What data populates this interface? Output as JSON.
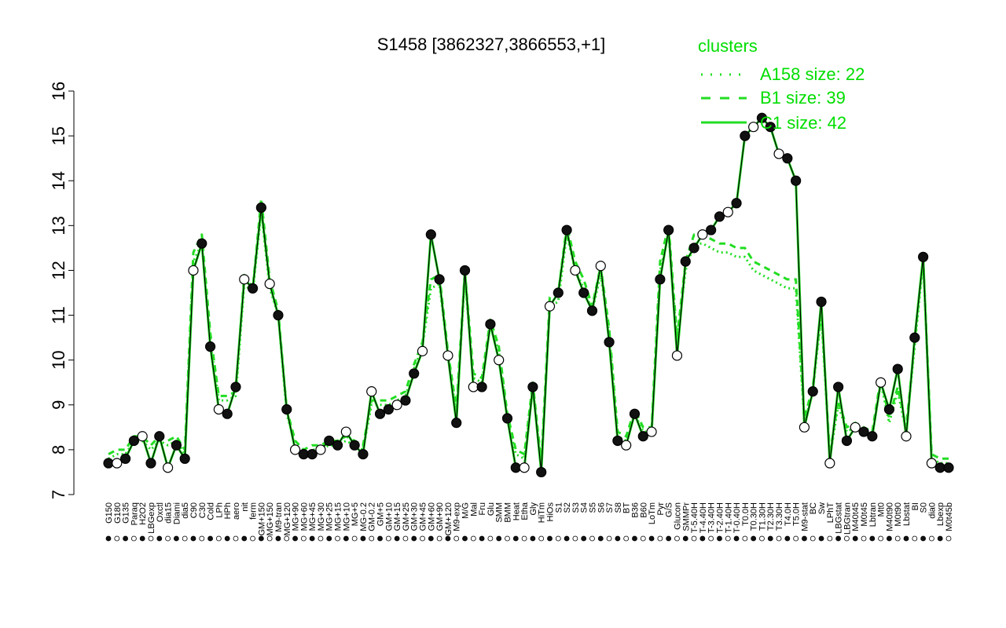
{
  "chart_data": {
    "type": "line",
    "title": "S1458 [3862327,3866553,+1]",
    "xlabel": "",
    "ylabel": "",
    "ylim": [
      7,
      16
    ],
    "yticks": [
      7,
      8,
      9,
      10,
      11,
      12,
      13,
      14,
      15,
      16
    ],
    "x_tick_labels": [
      "G150",
      "G180",
      "G135",
      "Paraq",
      "H2O2",
      "LBGexp",
      "Oxctl",
      "dia15",
      "Diami",
      "dia5",
      "C90",
      "C30",
      "Cold",
      "LPh",
      "HPh",
      "aero",
      "nit",
      "ferm",
      "GM+150",
      "MG+150",
      "M9-tran",
      "MG+120",
      "MG+90",
      "MG+60",
      "MG+45",
      "MG+30",
      "MG+25",
      "MG+15",
      "MG+10",
      "MG+5",
      "MG-0.2",
      "GM-0.2",
      "GM+5",
      "GM+10",
      "GM+15",
      "GM+25",
      "GM+30",
      "GM+45",
      "GM+60",
      "GM+90",
      "GM+120",
      "M9-exp",
      "M/G",
      "Mal",
      "Fru",
      "Glu",
      "SMM",
      "BMM",
      "Heat",
      "Etha",
      "Gly",
      "HiTm",
      "HiOs",
      "S1",
      "S2",
      "S3",
      "S4",
      "S5",
      "S6",
      "S7",
      "S8",
      "BT",
      "B36",
      "B60",
      "LoTm",
      "Pyr",
      "G/S",
      "Glucon",
      "SMMPr",
      "T-5.40H",
      "T-4.40H",
      "T-3.40H",
      "T-2.40H",
      "T-1.40H",
      "T-0.40H",
      "T0.0H",
      "T0.30H",
      "T1.30H",
      "T2.30H",
      "T3.30H",
      "T4.0H",
      "T5.0H",
      "M9-stat",
      "BC",
      "Sw",
      "LPhT",
      "LBGstat",
      "LBGtran",
      "M40t45",
      "M0t45",
      "Lbtran",
      "Mt0",
      "M40t90",
      "M0t90",
      "Lbstat",
      "BI",
      "S0",
      "dia0",
      "Lbexp",
      "M0t45b"
    ],
    "series": [
      {
        "name": "A158 size: 22",
        "style": "dotted",
        "values": [
          7.8,
          7.9,
          7.9,
          8.2,
          8.2,
          8.0,
          8.2,
          8.1,
          8.2,
          7.9,
          12.2,
          12.6,
          10.4,
          9.1,
          9.1,
          9.2,
          11.7,
          11.5,
          13.3,
          11.6,
          11.0,
          8.8,
          8.1,
          7.9,
          8.0,
          8.0,
          8.1,
          8.1,
          8.2,
          8.1,
          8.0,
          9.0,
          9.0,
          9.0,
          9.1,
          9.2,
          9.8,
          10.3,
          11.6,
          11.7,
          10.1,
          8.8,
          11.8,
          9.6,
          9.5,
          10.8,
          10.2,
          8.7,
          7.9,
          7.8,
          9.4,
          7.6,
          11.2,
          11.3,
          12.8,
          12.0,
          11.6,
          11.1,
          11.9,
          10.6,
          8.3,
          8.2,
          8.8,
          8.4,
          8.4,
          12.0,
          12.8,
          10.4,
          12.0,
          12.6,
          12.6,
          12.5,
          12.4,
          12.4,
          12.3,
          12.3,
          12.0,
          11.9,
          11.8,
          11.7,
          11.6,
          11.6,
          8.6,
          9.3,
          11.0,
          7.8,
          9.0,
          8.4,
          8.5,
          8.4,
          8.3,
          9.5,
          8.6,
          9.3,
          8.4,
          10.3,
          12.2,
          7.8,
          7.7,
          7.7
        ]
      },
      {
        "name": "B1 size: 39",
        "style": "dashed",
        "values": [
          7.9,
          8.0,
          8.0,
          8.3,
          8.3,
          8.1,
          8.3,
          8.2,
          8.3,
          8.0,
          12.4,
          12.8,
          10.6,
          9.2,
          9.2,
          9.3,
          11.9,
          11.6,
          13.6,
          11.8,
          11.1,
          8.9,
          8.2,
          8.0,
          8.1,
          8.1,
          8.2,
          8.2,
          8.3,
          8.2,
          8.1,
          9.1,
          9.1,
          9.1,
          9.2,
          9.3,
          9.9,
          10.4,
          11.8,
          11.9,
          10.2,
          8.9,
          12.0,
          9.7,
          9.6,
          10.9,
          10.3,
          8.8,
          8.0,
          7.9,
          9.5,
          7.7,
          11.4,
          11.5,
          13.0,
          12.2,
          11.8,
          11.2,
          12.1,
          10.7,
          8.4,
          8.3,
          8.9,
          8.5,
          8.5,
          12.2,
          13.0,
          10.5,
          12.2,
          12.8,
          12.8,
          12.7,
          12.6,
          12.6,
          12.5,
          12.5,
          12.2,
          12.1,
          12.0,
          11.9,
          11.8,
          11.8,
          8.7,
          9.4,
          11.1,
          7.9,
          9.1,
          8.5,
          8.6,
          8.5,
          8.4,
          9.6,
          8.7,
          9.4,
          8.5,
          10.4,
          12.3,
          7.9,
          7.8,
          7.8
        ]
      },
      {
        "name": "C1 size: 42",
        "style": "solid",
        "values": [
          7.7,
          7.7,
          7.8,
          8.2,
          8.3,
          7.7,
          8.3,
          7.6,
          8.1,
          7.8,
          12.0,
          12.6,
          10.3,
          8.9,
          8.8,
          9.4,
          11.8,
          11.6,
          13.4,
          11.7,
          11.0,
          8.9,
          8.0,
          7.9,
          7.9,
          8.0,
          8.2,
          8.1,
          8.4,
          8.1,
          7.9,
          9.3,
          8.8,
          8.9,
          9.0,
          9.1,
          9.7,
          10.2,
          12.8,
          11.8,
          10.1,
          8.6,
          12.0,
          9.4,
          9.4,
          10.8,
          10.0,
          8.7,
          7.6,
          7.6,
          9.4,
          7.5,
          11.2,
          11.5,
          12.9,
          12.0,
          11.5,
          11.1,
          12.1,
          10.4,
          8.2,
          8.1,
          8.8,
          8.3,
          8.4,
          11.8,
          12.9,
          10.1,
          12.2,
          12.5,
          12.8,
          12.9,
          13.2,
          13.3,
          13.5,
          15.0,
          15.2,
          15.4,
          15.2,
          14.6,
          14.5,
          14.0,
          8.5,
          9.3,
          11.3,
          7.7,
          9.4,
          8.2,
          8.5,
          8.4,
          8.3,
          9.5,
          8.9,
          9.8,
          8.3,
          10.5,
          12.3,
          7.7,
          7.6,
          7.6
        ]
      }
    ],
    "legend": {
      "title": "clusters",
      "placement": "top-right",
      "entries": [
        {
          "label": "A158 size: 22",
          "style": "dotted"
        },
        {
          "label": "B1 size: 39",
          "style": "dashed"
        },
        {
          "label": "C1 size: 42",
          "style": "solid"
        }
      ]
    },
    "colors": {
      "line": "#22dd22",
      "point_line": "#000000",
      "legend": "#00dd00"
    }
  }
}
